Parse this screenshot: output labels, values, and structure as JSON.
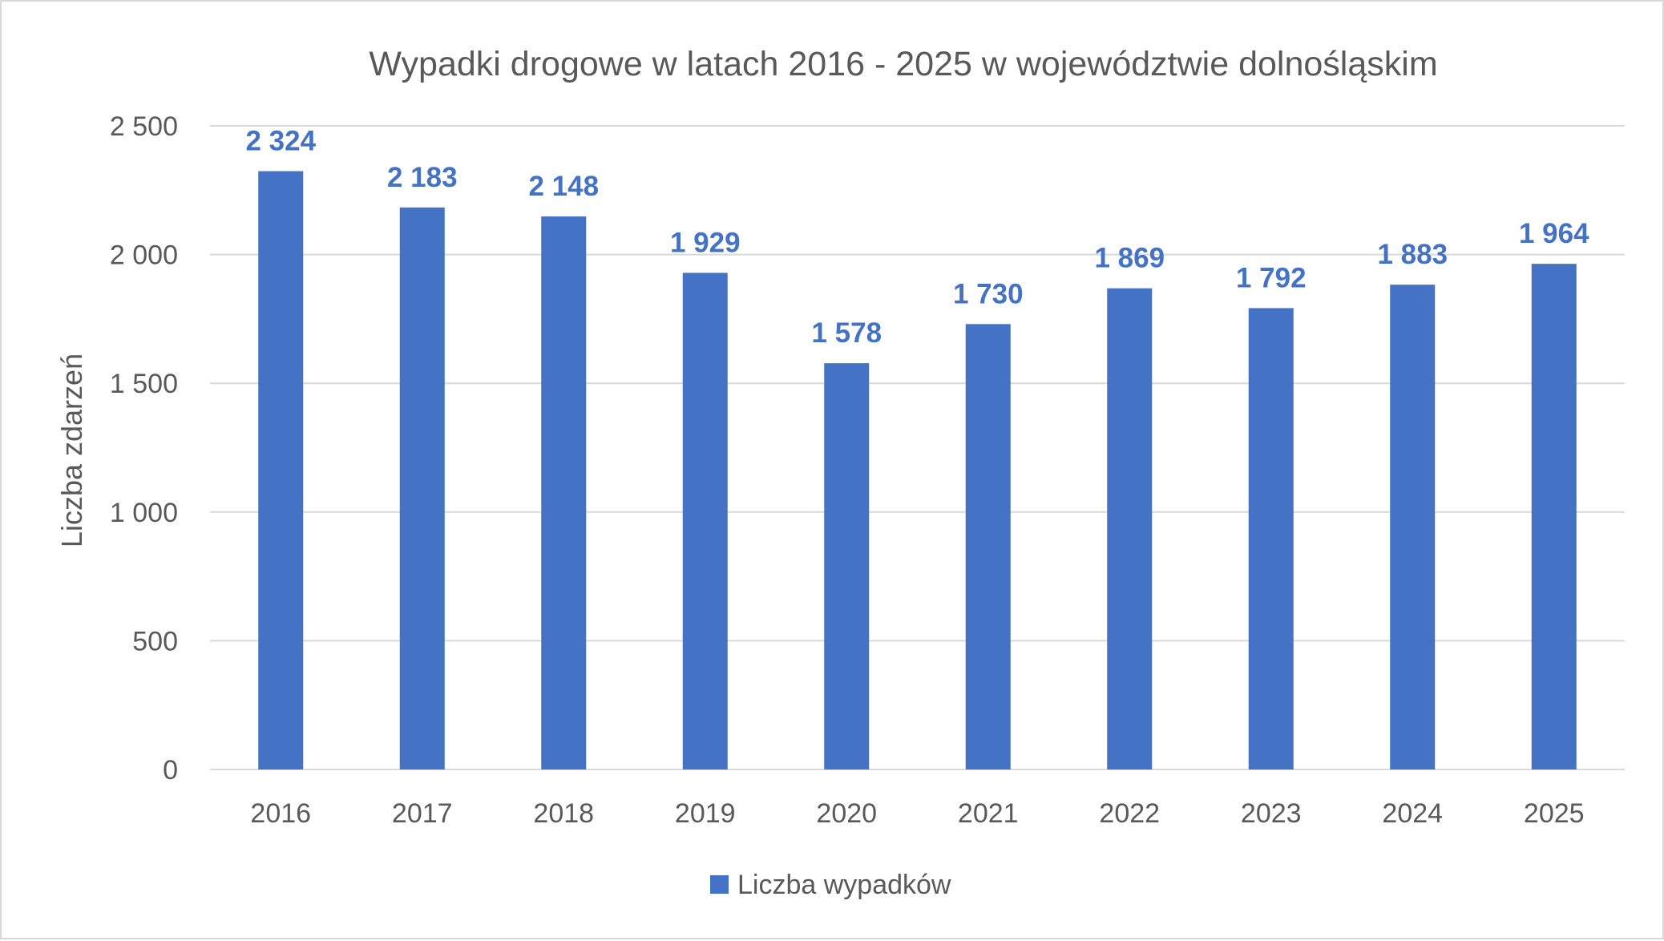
{
  "chart_data": {
    "type": "bar",
    "title": "Wypadki drogowe w latach 2016 - 2025 w województwie dolnośląskim",
    "xlabel": "",
    "ylabel": "Liczba zdarzeń",
    "categories": [
      "2016",
      "2017",
      "2018",
      "2019",
      "2020",
      "2021",
      "2022",
      "2023",
      "2024",
      "2025"
    ],
    "series": [
      {
        "name": "Liczba wypadków",
        "values": [
          2324,
          2183,
          2148,
          1929,
          1578,
          1730,
          1869,
          1792,
          1883,
          1964
        ],
        "data_labels": [
          "2 324",
          "2 183",
          "2 148",
          "1 929",
          "1 578",
          "1 730",
          "1 869",
          "1 792",
          "1 883",
          "1 964"
        ],
        "color": "#4472c4"
      }
    ],
    "ylim": [
      0,
      2500
    ],
    "yticks": [
      0,
      500,
      1000,
      1500,
      2000,
      2500
    ],
    "ytick_labels": [
      "0",
      "500",
      "1 000",
      "1 500",
      "2 000",
      "2 500"
    ],
    "grid": true,
    "legend_position": "bottom",
    "colors": {
      "bar": "#4472c4",
      "data_label": "#4472c4",
      "gridline": "#d9d9d9",
      "text": "#595959"
    }
  }
}
